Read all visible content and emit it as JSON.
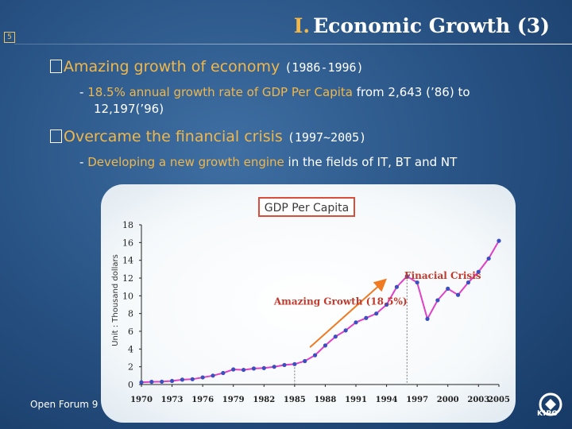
{
  "slide": {
    "page_number": "5",
    "title_roman": "Ⅰ.",
    "title_text": "Economic Growth (3)",
    "footer": "Open Forum 9",
    "logo_text": "KIPO"
  },
  "bullets": [
    {
      "label": "Amazing growth of economy",
      "years": "(1986-1996)",
      "sub_prefix": "- ",
      "sub_highlight": "18.5% annual growth rate of GDP Per Capita",
      "sub_rest": " from 2,643 (’86) to",
      "sub_line2": "12,197(’96)"
    },
    {
      "label": "Overcame the financial crisis",
      "years": "(1997~2005)",
      "sub_prefix": "- ",
      "sub_highlight": "Developing a new growth engine",
      "sub_rest": " in the fields of IT, BT and NT"
    }
  ],
  "chart_data": {
    "type": "line",
    "title": "GDP Per Capita",
    "ylabel": "Unit : Thousand dollars",
    "xlabel": "",
    "ylim": [
      0,
      18
    ],
    "yticks": [
      0,
      2,
      4,
      6,
      8,
      10,
      12,
      14,
      16,
      18
    ],
    "xlim": [
      1970,
      2005
    ],
    "xticks": [
      1970,
      1973,
      1976,
      1979,
      1982,
      1985,
      1988,
      1991,
      1994,
      1997,
      2000,
      2003,
      2005
    ],
    "series": [
      {
        "name": "GDP Per Capita",
        "color": "#e040c8",
        "x": [
          1970,
          1971,
          1972,
          1973,
          1974,
          1975,
          1976,
          1977,
          1978,
          1979,
          1980,
          1981,
          1982,
          1983,
          1984,
          1985,
          1986,
          1987,
          1988,
          1989,
          1990,
          1991,
          1992,
          1993,
          1994,
          1995,
          1996,
          1997,
          1998,
          1999,
          2000,
          2001,
          2002,
          2003,
          2004,
          2005
        ],
        "y": [
          0.25,
          0.3,
          0.32,
          0.4,
          0.55,
          0.6,
          0.8,
          1.0,
          1.3,
          1.7,
          1.65,
          1.8,
          1.85,
          2.0,
          2.2,
          2.3,
          2.64,
          3.3,
          4.4,
          5.4,
          6.1,
          7.0,
          7.5,
          8.0,
          9.0,
          11.0,
          12.2,
          11.5,
          7.4,
          9.5,
          10.8,
          10.1,
          11.5,
          12.7,
          14.2,
          16.2
        ]
      }
    ],
    "markers": [
      {
        "x": 2005,
        "y": 16.0
      }
    ],
    "reference_lines_x": [
      1985,
      1996
    ],
    "annotations": [
      {
        "text": "Amazing Growth (18.5%)",
        "x": 1989.5,
        "y": 9.0,
        "color": "#c0392b"
      },
      {
        "text": "Finacial Crisis",
        "x": 1999.5,
        "y": 11.9,
        "color": "#c0392b"
      }
    ],
    "arrow": {
      "from": [
        1986.5,
        4.2
      ],
      "to": [
        1993.8,
        11.7
      ],
      "color": "#f07a22"
    }
  },
  "colors": {
    "accent": "#f0b74a",
    "line": "#e040c8",
    "arrow": "#f07a22",
    "annotation": "#c0392b"
  }
}
